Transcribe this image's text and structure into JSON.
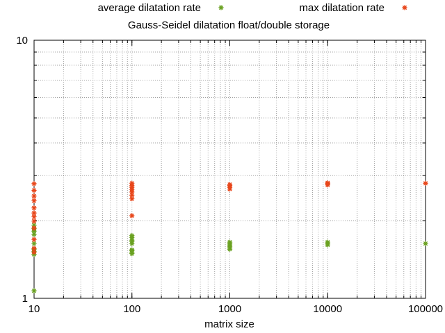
{
  "chart_data": {
    "type": "scatter",
    "title": "Gauss-Seidel dilatation float/double storage",
    "xlabel": "matrix size",
    "ylabel": "",
    "xscale": "log",
    "yscale": "log",
    "xlim": [
      10,
      100000
    ],
    "ylim": [
      1,
      10
    ],
    "x_ticks": [
      10,
      100,
      1000,
      10000,
      100000
    ],
    "x_tick_labels": [
      "10",
      "100",
      "1000",
      "10000",
      "100000"
    ],
    "y_ticks": [
      1,
      10
    ],
    "y_tick_labels": [
      "1",
      "10"
    ],
    "grid": true,
    "legend_position": "top",
    "series": [
      {
        "name": "average dilatation rate",
        "color": "#6aa121",
        "marker": "star",
        "points": [
          [
            10,
            1.07
          ],
          [
            10,
            1.48
          ],
          [
            10,
            1.52
          ],
          [
            10,
            1.55
          ],
          [
            10,
            1.63
          ],
          [
            10,
            1.77
          ],
          [
            10,
            1.82
          ],
          [
            10,
            1.86
          ],
          [
            10,
            1.92
          ],
          [
            100,
            1.49
          ],
          [
            100,
            1.51
          ],
          [
            100,
            1.53
          ],
          [
            100,
            1.54
          ],
          [
            100,
            1.63
          ],
          [
            100,
            1.66
          ],
          [
            100,
            1.68
          ],
          [
            100,
            1.72
          ],
          [
            100,
            1.75
          ],
          [
            1000,
            1.55
          ],
          [
            1000,
            1.57
          ],
          [
            1000,
            1.59
          ],
          [
            1000,
            1.61
          ],
          [
            1000,
            1.63
          ],
          [
            1000,
            1.65
          ],
          [
            10000,
            1.61
          ],
          [
            10000,
            1.63
          ],
          [
            10000,
            1.65
          ],
          [
            100000,
            1.63
          ]
        ]
      },
      {
        "name": "max dilatation rate",
        "color": "#e8461a",
        "marker": "star",
        "points": [
          [
            10,
            1.51
          ],
          [
            10,
            1.56
          ],
          [
            10,
            1.69
          ],
          [
            10,
            1.87
          ],
          [
            10,
            1.99
          ],
          [
            10,
            2.07
          ],
          [
            10,
            2.14
          ],
          [
            10,
            2.24
          ],
          [
            10,
            2.39
          ],
          [
            10,
            2.49
          ],
          [
            10,
            2.62
          ],
          [
            10,
            2.78
          ],
          [
            100,
            2.09
          ],
          [
            100,
            2.43
          ],
          [
            100,
            2.51
          ],
          [
            100,
            2.58
          ],
          [
            100,
            2.64
          ],
          [
            100,
            2.69
          ],
          [
            100,
            2.73
          ],
          [
            100,
            2.79
          ],
          [
            1000,
            2.65
          ],
          [
            1000,
            2.69
          ],
          [
            1000,
            2.73
          ],
          [
            1000,
            2.76
          ],
          [
            10000,
            2.75
          ],
          [
            10000,
            2.78
          ],
          [
            10000,
            2.8
          ],
          [
            100000,
            2.79
          ]
        ]
      }
    ]
  }
}
